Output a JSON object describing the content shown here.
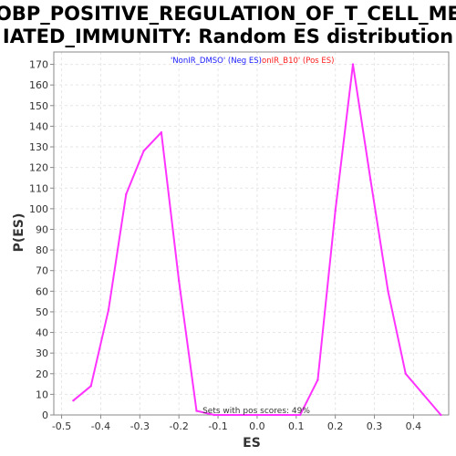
{
  "colors": {
    "background": "#ffffff",
    "plot_border": "#888888",
    "grid": "#e6e6e6",
    "curve": "#ff33ff",
    "legend_neg": "#1a1aff",
    "legend_pos": "#ff1a1a"
  },
  "chart_data": {
    "type": "line",
    "title_line1": "GOBP_POSITIVE_REGULATION_OF_T_CELL_MED",
    "title_line2": "IATED_IMMUNITY: Random ES distribution",
    "xlabel": "ES",
    "ylabel": "P(ES)",
    "xlim": [
      -0.52,
      0.49
    ],
    "ylim": [
      0,
      176
    ],
    "grid": true,
    "xticks": [
      -0.5,
      -0.4,
      -0.3,
      -0.2,
      -0.1,
      0.0,
      0.1,
      0.2,
      0.3,
      0.4
    ],
    "xtick_labels": [
      "-0.5",
      "-0.4",
      "-0.3",
      "-0.2",
      "-0.1",
      "0.0",
      "0.1",
      "0.2",
      "0.3",
      "0.4"
    ],
    "yticks": [
      0,
      10,
      20,
      30,
      40,
      50,
      60,
      70,
      80,
      90,
      100,
      110,
      120,
      130,
      140,
      150,
      160,
      170
    ],
    "ytick_labels": [
      "0",
      "10",
      "20",
      "30",
      "40",
      "50",
      "60",
      "70",
      "80",
      "90",
      "100",
      "110",
      "120",
      "130",
      "140",
      "150",
      "160",
      "170"
    ],
    "legend": {
      "placement": "top-center",
      "neg_label": "'NonIR_DMSO' (Neg ES)",
      "pos_label": "onIR_B10' (Pos ES)"
    },
    "annotation": "Sets with pos scores: 49%",
    "series": [
      {
        "x": [
          -0.47,
          -0.425,
          -0.38,
          -0.335,
          -0.29,
          -0.245,
          -0.2,
          -0.155,
          -0.11,
          0.11,
          0.155,
          0.2,
          0.245,
          0.29,
          0.335,
          0.38,
          0.425,
          0.47
        ],
        "y": [
          7,
          14,
          51,
          107,
          128,
          137,
          65,
          2,
          0,
          0,
          17,
          99,
          170,
          114,
          60,
          20,
          10,
          0
        ]
      }
    ]
  }
}
